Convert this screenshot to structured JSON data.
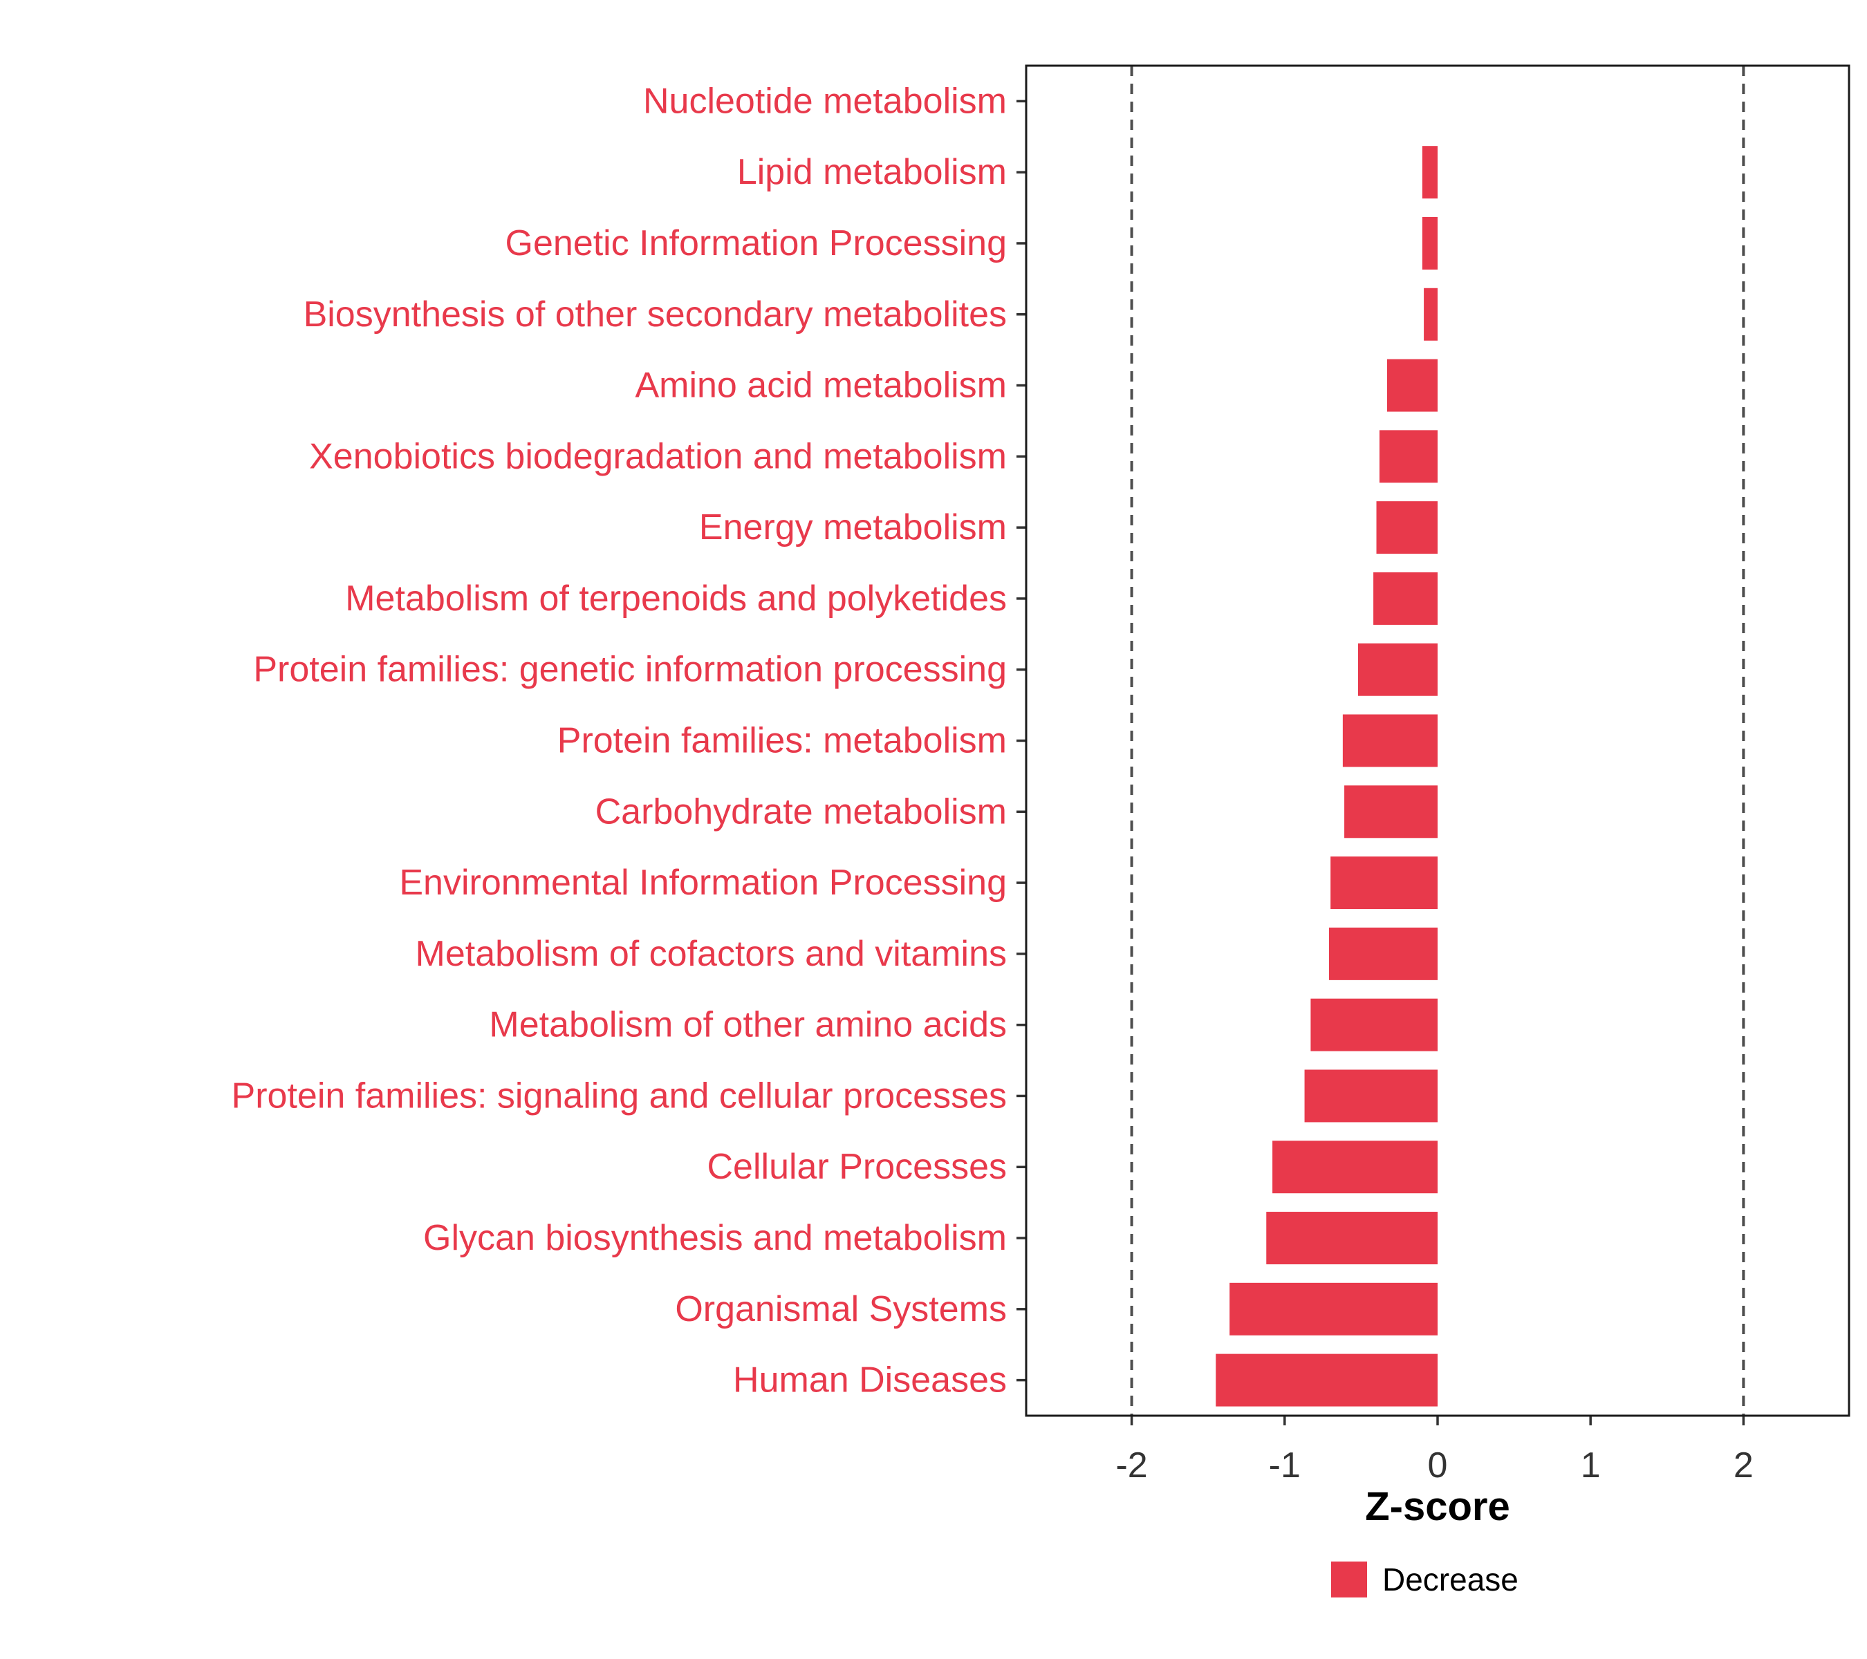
{
  "chart_data": {
    "type": "bar",
    "orientation": "horizontal",
    "title": "",
    "xlabel": "Z-score",
    "ylabel": "",
    "xlim": [
      -2.69,
      2.69
    ],
    "x_ticks": [
      -2,
      -1,
      0,
      1,
      2
    ],
    "x_tick_labels": [
      "-2",
      "-1",
      "0",
      "1",
      "2"
    ],
    "reference_lines": [
      -2,
      2
    ],
    "grid": false,
    "bar_color": "#E8394B",
    "label_color": "#E8394B",
    "axis_text_color": "#333333",
    "reference_line_color": "#4D4D4D",
    "panel_border_color": "#1a1a1a",
    "categories": [
      "Nucleotide metabolism",
      "Lipid metabolism",
      "Genetic Information Processing",
      "Biosynthesis of other secondary metabolites",
      "Amino acid metabolism",
      "Xenobiotics biodegradation and metabolism",
      "Energy metabolism",
      "Metabolism of terpenoids and polyketides",
      "Protein families: genetic information processing",
      "Protein families: metabolism",
      "Carbohydrate metabolism",
      "Environmental Information Processing",
      "Metabolism of cofactors and vitamins",
      "Metabolism of other amino acids",
      "Protein families: signaling and cellular processes",
      "Cellular Processes",
      "Glycan biosynthesis and metabolism",
      "Organismal Systems",
      "Human Diseases"
    ],
    "values": [
      0,
      -0.1,
      -0.1,
      -0.09,
      -0.33,
      -0.38,
      -0.4,
      -0.42,
      -0.52,
      -0.62,
      -0.61,
      -0.7,
      -0.71,
      -0.83,
      -0.87,
      -1.08,
      -1.12,
      -1.36,
      -1.45
    ],
    "legend": {
      "position": "bottom",
      "items": [
        {
          "label": "Decrease",
          "color": "#E8394B"
        }
      ]
    }
  }
}
